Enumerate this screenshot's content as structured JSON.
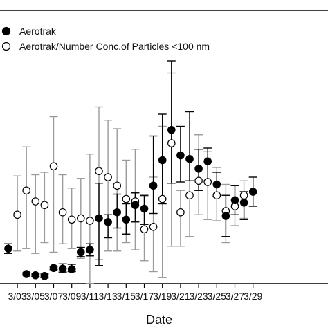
{
  "chart_data": {
    "type": "scatter",
    "title": "",
    "xlabel": "Date",
    "ylabel": "",
    "legend_placement": "top-left",
    "grid": false,
    "x_ticks": [
      "3/03",
      "3/05",
      "3/07",
      "3/09",
      "3/11",
      "3/13",
      "3/15",
      "3/17",
      "3/19",
      "3/21",
      "3/23",
      "3/25",
      "3/27",
      "3/29"
    ],
    "x_tick_days": [
      3,
      5,
      7,
      9,
      11,
      13,
      15,
      17,
      19,
      21,
      23,
      25,
      27,
      29
    ],
    "xlim": [
      1.7,
      29.9
    ],
    "ylim": [
      0,
      100
    ],
    "series": [
      {
        "name": "Aerotrak",
        "marker": "filled-circle",
        "color": "#000000",
        "errorbar_color": "#000000",
        "points": [
          {
            "x": 2,
            "y": 14.5,
            "lo": 12.5,
            "hi": 16.5
          },
          {
            "x": 4,
            "y": 4.0,
            "lo": 3.5,
            "hi": 4.5
          },
          {
            "x": 5,
            "y": 3.5,
            "lo": 3.0,
            "hi": 4.0
          },
          {
            "x": 6,
            "y": 3.2,
            "lo": 2.5,
            "hi": 4.0
          },
          {
            "x": 7,
            "y": 6.5,
            "lo": 5.8,
            "hi": 7.2
          },
          {
            "x": 8,
            "y": 6.2,
            "lo": 4.8,
            "hi": 8.2
          },
          {
            "x": 9,
            "y": 6.0,
            "lo": 5.0,
            "hi": 8.0
          },
          {
            "x": 10,
            "y": 13.0,
            "lo": 11.2,
            "hi": 15.0
          },
          {
            "x": 11,
            "y": 14.0,
            "lo": 11.5,
            "hi": 16.5
          },
          {
            "x": 12,
            "y": 27.0,
            "lo": 7.5,
            "hi": 41.5
          },
          {
            "x": 13,
            "y": 25.5,
            "lo": 19.0,
            "hi": 28.5
          },
          {
            "x": 14,
            "y": 29.5,
            "lo": 23.0,
            "hi": 37.0
          },
          {
            "x": 15,
            "y": 26.5,
            "lo": 20.5,
            "hi": 33.0
          },
          {
            "x": 16,
            "y": 32.5,
            "lo": 25.5,
            "hi": 37.5
          },
          {
            "x": 17,
            "y": 31.0,
            "lo": 24.5,
            "hi": 36.5
          },
          {
            "x": 18,
            "y": 40.5,
            "lo": 29.0,
            "hi": 61.0
          },
          {
            "x": 19,
            "y": 51.0,
            "lo": 33.0,
            "hi": 70.0
          },
          {
            "x": 20,
            "y": 63.5,
            "lo": 41.5,
            "hi": 92.0
          },
          {
            "x": 21,
            "y": 53.0,
            "lo": 42.0,
            "hi": 65.0
          },
          {
            "x": 22,
            "y": 51.5,
            "lo": 42.5,
            "hi": 71.0
          },
          {
            "x": 23,
            "y": 47.5,
            "lo": 38.5,
            "hi": 55.5
          },
          {
            "x": 24,
            "y": 50.5,
            "lo": 42.5,
            "hi": 56.0
          },
          {
            "x": 25,
            "y": 41.0,
            "lo": 36.0,
            "hi": 46.0
          },
          {
            "x": 26,
            "y": 28.0,
            "lo": 19.5,
            "hi": 36.5
          },
          {
            "x": 27,
            "y": 34.5,
            "lo": 28.5,
            "hi": 40.5
          },
          {
            "x": 28,
            "y": 33.5,
            "lo": 26.5,
            "hi": 38.0
          },
          {
            "x": 29,
            "y": 38.0,
            "lo": 32.0,
            "hi": 44.0
          }
        ]
      },
      {
        "name": "Aerotrak/Number Conc.of Particles <100 nm",
        "marker": "open-circle",
        "color": "#000000",
        "errorbar_color": "#9a9a9a",
        "points": [
          {
            "x": 3,
            "y": 28.5,
            "lo": 13.5,
            "hi": 44.5
          },
          {
            "x": 4,
            "y": 38.5,
            "lo": 14.5,
            "hi": 56.5
          },
          {
            "x": 5,
            "y": 34.0,
            "lo": 12.5,
            "hi": 45.0
          },
          {
            "x": 6,
            "y": 32.5,
            "lo": 17.0,
            "hi": 46.0
          },
          {
            "x": 7,
            "y": 48.5,
            "lo": 13.0,
            "hi": 69.0
          },
          {
            "x": 8,
            "y": 29.5,
            "lo": 16.5,
            "hi": 45.0
          },
          {
            "x": 9,
            "y": 26.5,
            "lo": 14.5,
            "hi": 39.5
          },
          {
            "x": 10,
            "y": 27.0,
            "lo": 10.5,
            "hi": 43.5
          },
          {
            "x": 11,
            "y": 26.0,
            "lo": 0.0,
            "hi": 53.5
          },
          {
            "x": 12,
            "y": 46.5,
            "lo": 10.0,
            "hi": 73.0
          },
          {
            "x": 13,
            "y": 44.0,
            "lo": 13.5,
            "hi": 67.5
          },
          {
            "x": 14,
            "y": 40.5,
            "lo": 13.5,
            "hi": 64.0
          },
          {
            "x": 15,
            "y": 35.0,
            "lo": 17.0,
            "hi": 51.0
          },
          {
            "x": 16,
            "y": 34.0,
            "lo": 14.0,
            "hi": 55.5
          },
          {
            "x": 17,
            "y": 22.5,
            "lo": 9.5,
            "hi": 36.0
          },
          {
            "x": 18,
            "y": 23.5,
            "lo": 5.0,
            "hi": 44.0
          },
          {
            "x": 19,
            "y": 35.0,
            "lo": 2.5,
            "hi": 65.0
          },
          {
            "x": 20,
            "y": 58.0,
            "lo": 15.5,
            "hi": 87.0
          },
          {
            "x": 21,
            "y": 29.5,
            "lo": 15.5,
            "hi": 38.5
          },
          {
            "x": 22,
            "y": 36.5,
            "lo": 19.5,
            "hi": 51.5
          },
          {
            "x": 23,
            "y": 42.5,
            "lo": 28.5,
            "hi": 61.5
          },
          {
            "x": 24,
            "y": 42.0,
            "lo": 26.5,
            "hi": 54.5
          },
          {
            "x": 25,
            "y": 36.5,
            "lo": 26.0,
            "hi": 48.0
          },
          {
            "x": 26,
            "y": 30.0,
            "lo": 17.0,
            "hi": 41.0
          },
          {
            "x": 27,
            "y": 32.0,
            "lo": 24.0,
            "hi": 40.5
          },
          {
            "x": 28,
            "y": 36.5,
            "lo": 27.0,
            "hi": 42.5
          }
        ]
      }
    ]
  }
}
